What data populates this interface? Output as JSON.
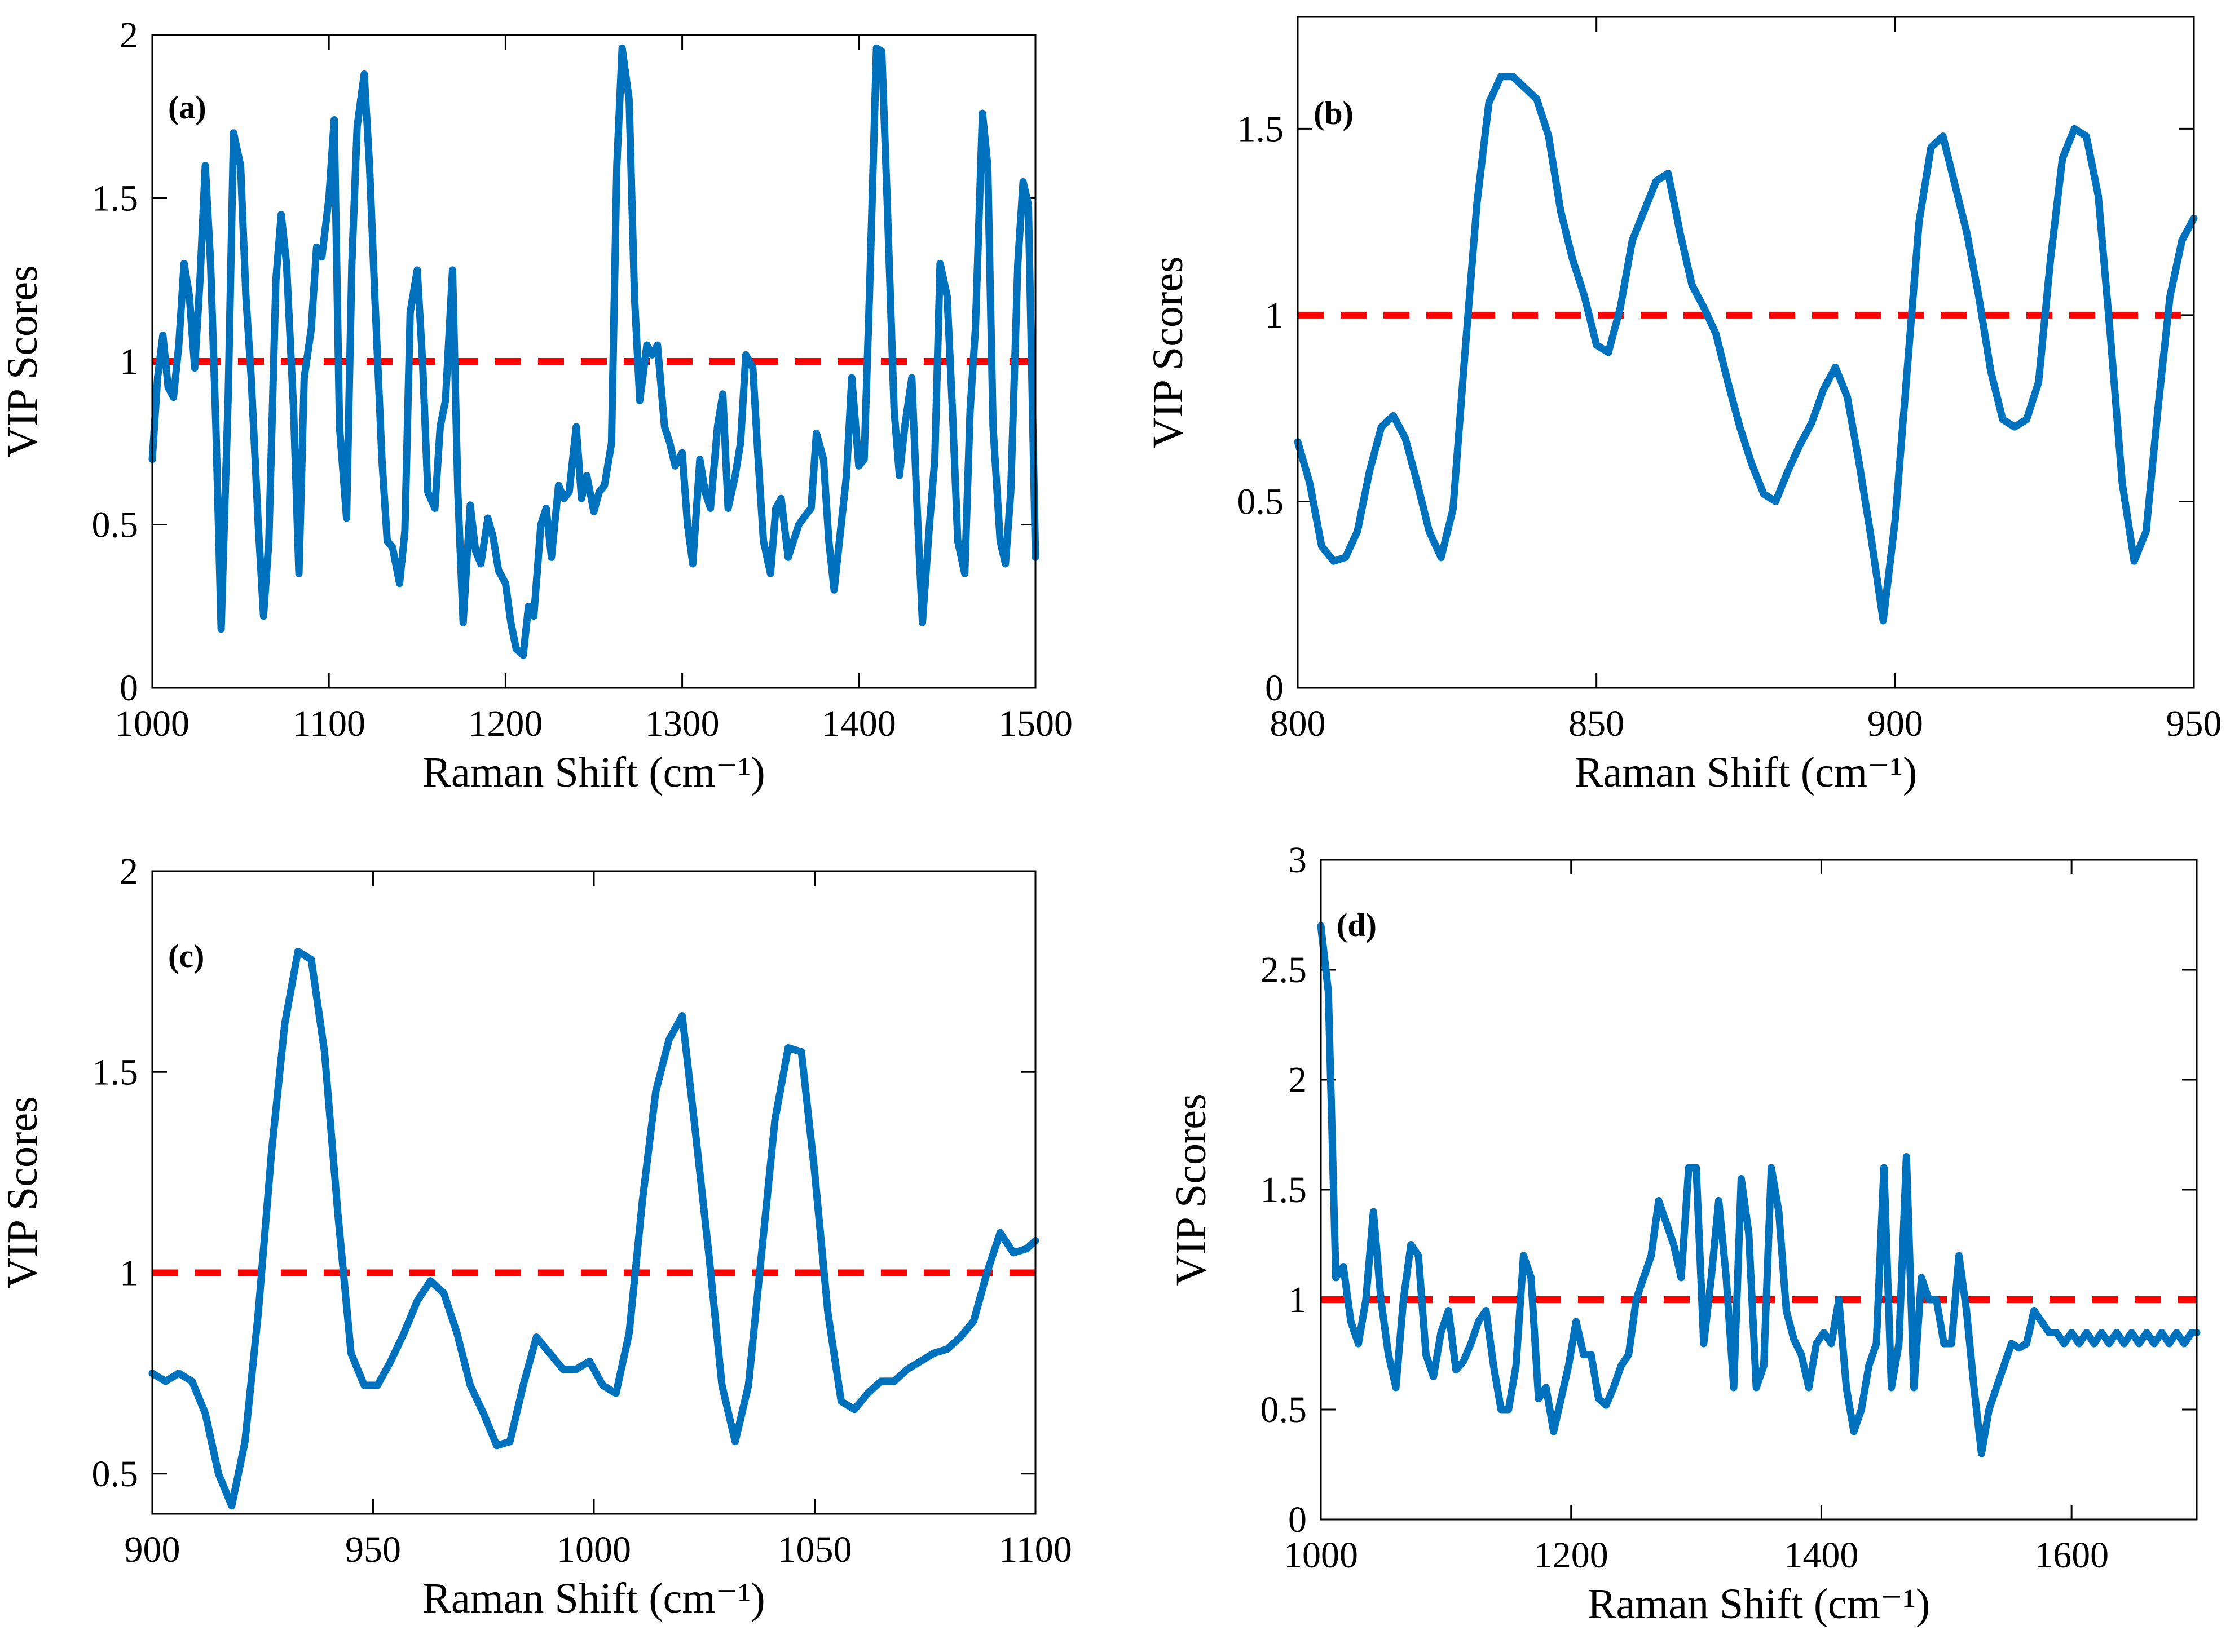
{
  "colors": {
    "series": "#0072BD",
    "threshold": "#FF0000"
  },
  "chart_data": [
    {
      "type": "line",
      "panel": "(a)",
      "xlabel": "Raman Shift (cm⁻¹)",
      "ylabel": "VIP Scores",
      "xlim": [
        1000,
        1500
      ],
      "ylim": [
        0,
        2
      ],
      "xticks": [
        1000,
        1100,
        1200,
        1300,
        1400,
        1500
      ],
      "yticks": [
        0,
        0.5,
        1,
        1.5,
        2
      ],
      "threshold": 1,
      "series": [
        {
          "name": "VIP",
          "x": [
            1000,
            1003,
            1006,
            1009,
            1012,
            1015,
            1018,
            1021,
            1024,
            1027,
            1030,
            1033,
            1036,
            1039,
            1043,
            1046,
            1050,
            1053,
            1056,
            1060,
            1063,
            1066,
            1070,
            1073,
            1076,
            1080,
            1083,
            1086,
            1090,
            1093,
            1096,
            1100,
            1103,
            1106,
            1110,
            1113,
            1116,
            1120,
            1123,
            1126,
            1130,
            1133,
            1136,
            1140,
            1143,
            1146,
            1150,
            1153,
            1156,
            1160,
            1163,
            1166,
            1170,
            1173,
            1176,
            1180,
            1183,
            1186,
            1190,
            1193,
            1196,
            1200,
            1203,
            1206,
            1210,
            1213,
            1216,
            1220,
            1223,
            1226,
            1230,
            1233,
            1236,
            1240,
            1243,
            1246,
            1250,
            1253,
            1256,
            1260,
            1263,
            1266,
            1270,
            1273,
            1276,
            1280,
            1283,
            1286,
            1290,
            1293,
            1296,
            1300,
            1303,
            1306,
            1310,
            1313,
            1316,
            1320,
            1323,
            1326,
            1330,
            1333,
            1336,
            1340,
            1343,
            1346,
            1350,
            1353,
            1356,
            1360,
            1363,
            1366,
            1370,
            1373,
            1376,
            1380,
            1383,
            1386,
            1390,
            1393,
            1396,
            1400,
            1403,
            1406,
            1410,
            1413,
            1416,
            1420,
            1423,
            1426,
            1430,
            1433,
            1436,
            1440,
            1443,
            1446,
            1450,
            1453,
            1456,
            1460,
            1463,
            1466,
            1470,
            1473,
            1476,
            1480,
            1483,
            1486,
            1490,
            1493,
            1496,
            1500
          ],
          "values": [
            0.7,
            0.95,
            1.08,
            0.92,
            0.89,
            1.05,
            1.3,
            1.2,
            0.98,
            1.25,
            1.6,
            1.3,
            0.8,
            0.18,
            0.9,
            1.7,
            1.6,
            1.2,
            0.95,
            0.5,
            0.22,
            0.45,
            1.25,
            1.45,
            1.3,
            0.85,
            0.35,
            0.95,
            1.1,
            1.35,
            1.32,
            1.5,
            1.74,
            0.8,
            0.52,
            1.3,
            1.72,
            1.88,
            1.6,
            1.2,
            0.7,
            0.45,
            0.43,
            0.32,
            0.48,
            1.15,
            1.28,
            1.0,
            0.6,
            0.55,
            0.8,
            0.88,
            1.28,
            0.6,
            0.2,
            0.56,
            0.42,
            0.38,
            0.52,
            0.46,
            0.36,
            0.32,
            0.2,
            0.12,
            0.1,
            0.25,
            0.22,
            0.5,
            0.55,
            0.4,
            0.62,
            0.58,
            0.6,
            0.8,
            0.58,
            0.65,
            0.54,
            0.6,
            0.62,
            0.75,
            1.6,
            1.96,
            1.8,
            1.2,
            0.88,
            1.05,
            1.02,
            1.05,
            0.8,
            0.75,
            0.68,
            0.72,
            0.5,
            0.38,
            0.7,
            0.6,
            0.55,
            0.8,
            0.9,
            0.55,
            0.65,
            0.75,
            1.02,
            0.98,
            0.7,
            0.45,
            0.35,
            0.55,
            0.58,
            0.4,
            0.45,
            0.5,
            0.53,
            0.55,
            0.78,
            0.7,
            0.45,
            0.3,
            0.5,
            0.65,
            0.95,
            0.68,
            0.7,
            1.2,
            1.96,
            1.95,
            1.5,
            0.85,
            0.65,
            0.8,
            0.95,
            0.55,
            0.2,
            0.5,
            0.7,
            1.3,
            1.2,
            0.85,
            0.45,
            0.35,
            0.85,
            1.1,
            1.76,
            1.6,
            0.8,
            0.45,
            0.38,
            0.6,
            1.3,
            1.55,
            1.48,
            0.4
          ]
        }
      ]
    },
    {
      "type": "line",
      "panel": "(b)",
      "xlabel": "Raman Shift (cm⁻¹)",
      "ylabel": "VIP Scores",
      "xlim": [
        800,
        950
      ],
      "ylim": [
        0,
        1.8
      ],
      "xticks": [
        800,
        850,
        900,
        950
      ],
      "yticks": [
        0,
        0.5,
        1,
        1.5
      ],
      "threshold": 1,
      "series": [
        {
          "name": "VIP",
          "x": [
            800,
            802,
            804,
            806,
            808,
            810,
            812,
            814,
            816,
            818,
            820,
            822,
            824,
            826,
            828,
            830,
            832,
            834,
            836,
            838,
            840,
            842,
            844,
            846,
            848,
            850,
            852,
            854,
            856,
            858,
            860,
            862,
            864,
            866,
            868,
            870,
            872,
            874,
            876,
            878,
            880,
            882,
            884,
            886,
            888,
            890,
            892,
            894,
            896,
            898,
            900,
            902,
            904,
            906,
            908,
            910,
            912,
            914,
            916,
            918,
            920,
            922,
            924,
            926,
            928,
            930,
            932,
            934,
            936,
            938,
            940,
            942,
            944,
            946,
            948,
            950
          ],
          "values": [
            0.66,
            0.55,
            0.38,
            0.34,
            0.35,
            0.42,
            0.58,
            0.7,
            0.73,
            0.67,
            0.55,
            0.42,
            0.35,
            0.48,
            0.9,
            1.3,
            1.57,
            1.64,
            1.64,
            1.61,
            1.58,
            1.48,
            1.28,
            1.15,
            1.05,
            0.92,
            0.9,
            1.02,
            1.2,
            1.28,
            1.36,
            1.38,
            1.22,
            1.08,
            1.02,
            0.95,
            0.82,
            0.7,
            0.6,
            0.52,
            0.5,
            0.58,
            0.65,
            0.71,
            0.8,
            0.86,
            0.78,
            0.6,
            0.4,
            0.18,
            0.45,
            0.85,
            1.25,
            1.45,
            1.48,
            1.35,
            1.22,
            1.05,
            0.85,
            0.72,
            0.7,
            0.72,
            0.82,
            1.15,
            1.42,
            1.5,
            1.48,
            1.32,
            0.95,
            0.55,
            0.34,
            0.42,
            0.75,
            1.05,
            1.2,
            1.26
          ]
        }
      ]
    },
    {
      "type": "line",
      "panel": "(c)",
      "xlabel": "Raman Shift (cm⁻¹)",
      "ylabel": "VIP Scores",
      "xlim": [
        900,
        1100
      ],
      "ylim": [
        0.4,
        2
      ],
      "xticks": [
        900,
        950,
        1000,
        1050,
        1100
      ],
      "yticks": [
        0.5,
        1,
        1.5,
        2
      ],
      "threshold": 1,
      "series": [
        {
          "name": "VIP",
          "x": [
            900,
            903,
            906,
            909,
            912,
            915,
            918,
            921,
            924,
            927,
            930,
            933,
            936,
            939,
            942,
            945,
            948,
            951,
            954,
            957,
            960,
            963,
            966,
            969,
            972,
            975,
            978,
            981,
            984,
            987,
            990,
            993,
            996,
            999,
            1002,
            1005,
            1008,
            1011,
            1014,
            1017,
            1020,
            1023,
            1026,
            1029,
            1032,
            1035,
            1038,
            1041,
            1044,
            1047,
            1050,
            1053,
            1056,
            1059,
            1062,
            1065,
            1068,
            1071,
            1074,
            1077,
            1080,
            1083,
            1086,
            1089,
            1092,
            1095,
            1098,
            1100
          ],
          "values": [
            0.75,
            0.73,
            0.75,
            0.73,
            0.65,
            0.5,
            0.42,
            0.58,
            0.9,
            1.3,
            1.62,
            1.8,
            1.78,
            1.55,
            1.15,
            0.8,
            0.72,
            0.72,
            0.78,
            0.85,
            0.93,
            0.98,
            0.95,
            0.85,
            0.72,
            0.65,
            0.57,
            0.58,
            0.72,
            0.84,
            0.8,
            0.76,
            0.76,
            0.78,
            0.72,
            0.7,
            0.85,
            1.18,
            1.45,
            1.58,
            1.64,
            1.35,
            1.05,
            0.72,
            0.58,
            0.72,
            1.05,
            1.38,
            1.56,
            1.55,
            1.25,
            0.9,
            0.68,
            0.66,
            0.7,
            0.73,
            0.73,
            0.76,
            0.78,
            0.8,
            0.81,
            0.84,
            0.88,
            1.0,
            1.1,
            1.05,
            1.06,
            1.08
          ]
        }
      ]
    },
    {
      "type": "line",
      "panel": "(d)",
      "xlabel": "Raman Shift (cm⁻¹)",
      "ylabel": "VIP Scores",
      "xlim": [
        1000,
        1700
      ],
      "ylim": [
        0,
        3
      ],
      "xticks": [
        1000,
        1200,
        1400,
        1600
      ],
      "yticks": [
        0,
        0.5,
        1,
        1.5,
        2,
        2.5,
        3
      ],
      "threshold": 1,
      "series": [
        {
          "name": "VIP",
          "x": [
            1000,
            1006,
            1012,
            1018,
            1024,
            1030,
            1036,
            1042,
            1048,
            1054,
            1060,
            1066,
            1072,
            1078,
            1084,
            1090,
            1096,
            1102,
            1108,
            1114,
            1120,
            1126,
            1132,
            1138,
            1144,
            1150,
            1156,
            1162,
            1168,
            1174,
            1180,
            1186,
            1192,
            1198,
            1204,
            1210,
            1216,
            1222,
            1228,
            1234,
            1240,
            1246,
            1252,
            1258,
            1264,
            1270,
            1276,
            1282,
            1288,
            1294,
            1300,
            1306,
            1312,
            1318,
            1324,
            1330,
            1336,
            1342,
            1348,
            1354,
            1360,
            1366,
            1372,
            1378,
            1384,
            1390,
            1396,
            1402,
            1408,
            1414,
            1420,
            1426,
            1432,
            1438,
            1444,
            1450,
            1456,
            1462,
            1468,
            1474,
            1480,
            1486,
            1492,
            1498,
            1504,
            1510,
            1516,
            1522,
            1528,
            1534,
            1540,
            1546,
            1552,
            1558,
            1564,
            1570,
            1576,
            1582,
            1588,
            1594,
            1600,
            1606,
            1612,
            1618,
            1624,
            1630,
            1636,
            1642,
            1648,
            1654,
            1660,
            1666,
            1672,
            1678,
            1684,
            1690,
            1696,
            1700
          ],
          "values": [
            2.7,
            2.4,
            1.1,
            1.15,
            0.9,
            0.8,
            1.0,
            1.4,
            1.0,
            0.75,
            0.6,
            1.0,
            1.25,
            1.2,
            0.75,
            0.65,
            0.85,
            0.95,
            0.68,
            0.72,
            0.8,
            0.9,
            0.95,
            0.7,
            0.5,
            0.5,
            0.7,
            1.2,
            1.1,
            0.55,
            0.6,
            0.4,
            0.55,
            0.7,
            0.9,
            0.75,
            0.75,
            0.55,
            0.52,
            0.6,
            0.7,
            0.75,
            1.0,
            1.1,
            1.2,
            1.45,
            1.35,
            1.25,
            1.1,
            1.6,
            1.6,
            0.8,
            1.1,
            1.45,
            1.1,
            0.6,
            1.55,
            1.3,
            0.6,
            0.7,
            1.6,
            1.4,
            0.95,
            0.82,
            0.75,
            0.6,
            0.8,
            0.85,
            0.8,
            1.0,
            0.6,
            0.4,
            0.5,
            0.7,
            0.8,
            1.6,
            0.6,
            0.8,
            1.65,
            0.6,
            1.1,
            1.0,
            1.0,
            0.8,
            0.8,
            1.2,
            0.95,
            0.6,
            0.3,
            0.5,
            0.6,
            0.7,
            0.8,
            0.78,
            0.8,
            0.95,
            0.9,
            0.85,
            0.85,
            0.8,
            0.85,
            0.8,
            0.85,
            0.8,
            0.85,
            0.8,
            0.85,
            0.8,
            0.85,
            0.8,
            0.85,
            0.8,
            0.85,
            0.8,
            0.85,
            0.8,
            0.85,
            0.85
          ]
        }
      ]
    }
  ]
}
